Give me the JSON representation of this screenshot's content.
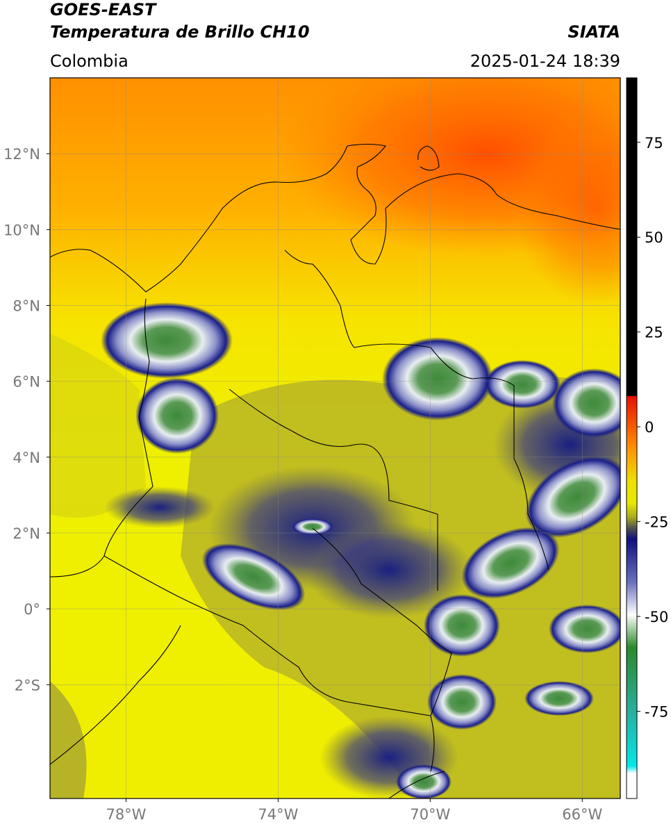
{
  "header": {
    "title": "GOES-EAST",
    "subtitle": "Temperatura de Brillo CH10",
    "source": "SIATA",
    "region": "Colombia",
    "datetime": "2025-01-24 18:39"
  },
  "map": {
    "xlim": [
      -80,
      -65
    ],
    "ylim": [
      -5,
      14
    ],
    "xticks": [
      {
        "value": -78,
        "label": "78°W"
      },
      {
        "value": -74,
        "label": "74°W"
      },
      {
        "value": -70,
        "label": "70°W"
      },
      {
        "value": -66,
        "label": "66°W"
      }
    ],
    "yticks": [
      {
        "value": 12,
        "label": "12°N"
      },
      {
        "value": 10,
        "label": "10°N"
      },
      {
        "value": 8,
        "label": "8°N"
      },
      {
        "value": 6,
        "label": "6°N"
      },
      {
        "value": 4,
        "label": "4°N"
      },
      {
        "value": 2,
        "label": "2°N"
      },
      {
        "value": 0,
        "label": "0°"
      },
      {
        "value": -2,
        "label": "2°S"
      }
    ],
    "grid": true
  },
  "colorbar": {
    "lim": [
      -98,
      92
    ],
    "ticks": [
      75,
      50,
      25,
      0,
      -25,
      -50,
      -75
    ]
  }
}
